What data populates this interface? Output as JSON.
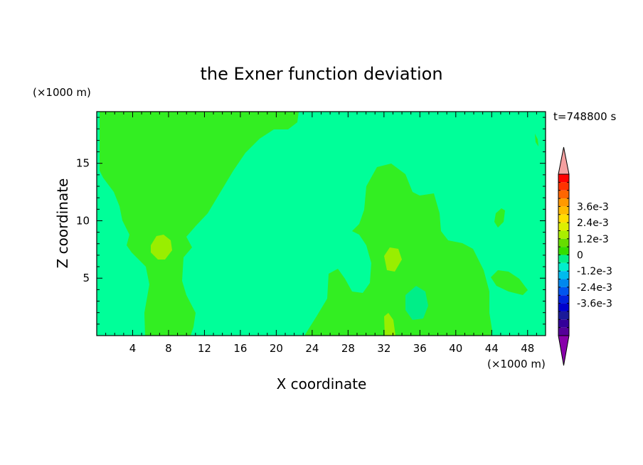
{
  "chart_data": {
    "type": "heatmap",
    "title": "the Exner function deviation",
    "xlabel": "X coordinate",
    "ylabel": "Z coordinate",
    "x_unit": "(×1000 m)",
    "y_unit": "(×1000 m)",
    "time_label": "t=748800 s",
    "xlim": [
      0,
      50
    ],
    "ylim": [
      0,
      19.5
    ],
    "x_ticks": [
      4,
      8,
      12,
      16,
      20,
      24,
      28,
      32,
      36,
      40,
      44,
      48
    ],
    "y_ticks": [
      5,
      10,
      15
    ],
    "colorbar": {
      "labels": [
        "3.6e-3",
        "2.4e-3",
        "1.2e-3",
        "0",
        "-1.2e-3",
        "-2.4e-3",
        "-3.6e-3"
      ],
      "label_values": [
        0.0036,
        0.0024,
        0.0012,
        0,
        -0.0012,
        -0.0024,
        -0.0036
      ],
      "level_step": 0.0006,
      "colors_top_to_bottom": [
        "#ff0000",
        "#ff3300",
        "#ff6600",
        "#ff9900",
        "#ffbb00",
        "#ffdd00",
        "#ddee00",
        "#aaee00",
        "#66dd00",
        "#33dd00",
        "#00ee88",
        "#00eecc",
        "#00bbee",
        "#0088ee",
        "#0055ee",
        "#0022dd",
        "#0000cc",
        "#1a1a99",
        "#330099",
        "#550099"
      ],
      "over_color": "#f4a0a0",
      "under_color": "#8800aa"
    },
    "fields": {
      "background_color": "#00ff99",
      "positive_color": "#33ee22",
      "strong_positive_color": "#99ee00",
      "low_color": "#00ee88"
    }
  }
}
